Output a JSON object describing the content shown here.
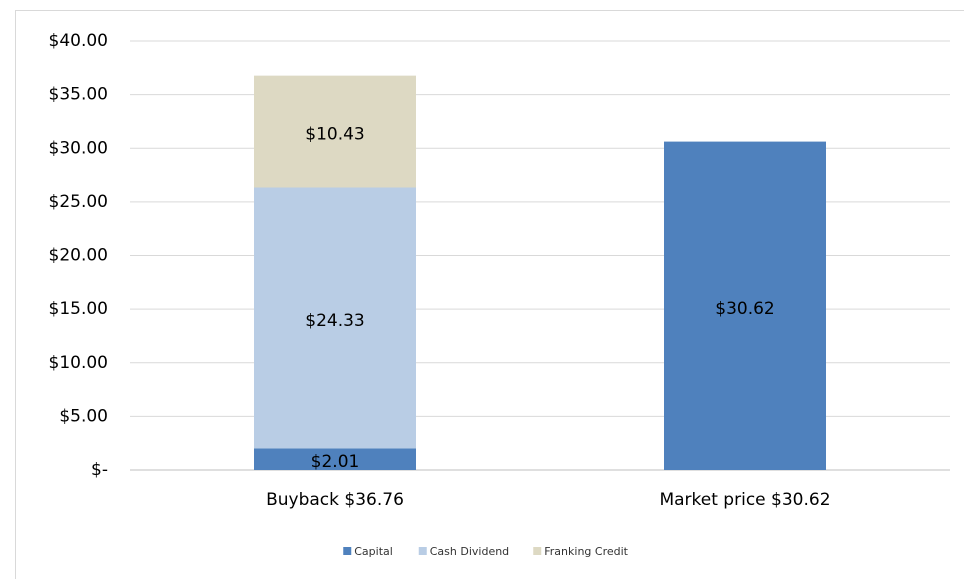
{
  "chart_data": {
    "type": "stacked_bar",
    "categories": [
      "Buyback $36.76",
      "Market price $30.62"
    ],
    "series": [
      {
        "name": "Capital",
        "color": "#4f81bd",
        "values": [
          2.01,
          30.62
        ],
        "value_labels": [
          "$2.01",
          "$30.62"
        ]
      },
      {
        "name": "Cash Dividend",
        "color": "#b9cde5",
        "values": [
          24.33,
          null
        ],
        "value_labels": [
          "$24.33",
          null
        ]
      },
      {
        "name": "Franking Credit",
        "color": "#ddd9c3",
        "values": [
          10.43,
          null
        ],
        "value_labels": [
          "$10.43",
          null
        ]
      }
    ],
    "ylim": [
      0,
      40
    ],
    "yticks": [
      {
        "value": 0,
        "label": "$-"
      },
      {
        "value": 5,
        "label": "$5.00"
      },
      {
        "value": 10,
        "label": "$10.00"
      },
      {
        "value": 15,
        "label": "$15.00"
      },
      {
        "value": 20,
        "label": "$20.00"
      },
      {
        "value": 25,
        "label": "$25.00"
      },
      {
        "value": 30,
        "label": "$30.00"
      },
      {
        "value": 35,
        "label": "$35.00"
      },
      {
        "value": 40,
        "label": "$40.00"
      }
    ],
    "grid": true,
    "legend": "bottom"
  }
}
